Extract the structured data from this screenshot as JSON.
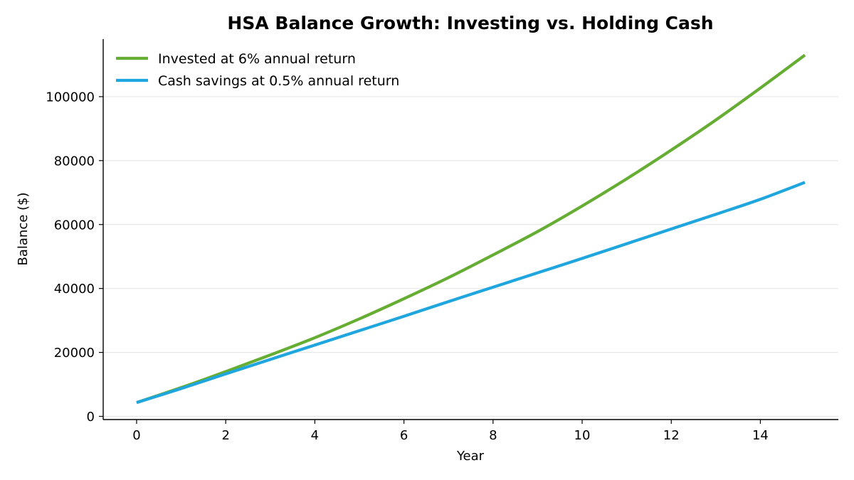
{
  "chart_data": {
    "type": "line",
    "title": "HSA Balance Growth: Investing vs. Holding Cash",
    "xlabel": "Year",
    "ylabel": "Balance ($)",
    "xlim": [
      -0.75,
      15.75
    ],
    "ylim": [
      -1000,
      118000
    ],
    "x_ticks": [
      0,
      2,
      4,
      6,
      8,
      10,
      12,
      14
    ],
    "y_ticks": [
      0,
      20000,
      40000,
      60000,
      80000,
      100000
    ],
    "grid": {
      "y": true,
      "x": false,
      "color": "#e8e8e8"
    },
    "legend_position": "top-left",
    "x": [
      0,
      1,
      2,
      3,
      4,
      5,
      6,
      7,
      8,
      9,
      10,
      11,
      12,
      13,
      14,
      15
    ],
    "series": [
      {
        "name": "Invested at 6% annual return",
        "color": "#66ad33",
        "values": [
          4300,
          9000,
          14000,
          19200,
          24600,
          30500,
          36800,
          43400,
          50500,
          57800,
          65800,
          74300,
          83300,
          92700,
          102700,
          113000
        ]
      },
      {
        "name": "Cash savings at 0.5% annual return",
        "color": "#1fa6de",
        "values": [
          4300,
          8700,
          13300,
          17800,
          22300,
          26800,
          31300,
          35900,
          40400,
          44900,
          49400,
          54000,
          58600,
          63200,
          67900,
          73200
        ]
      }
    ]
  }
}
